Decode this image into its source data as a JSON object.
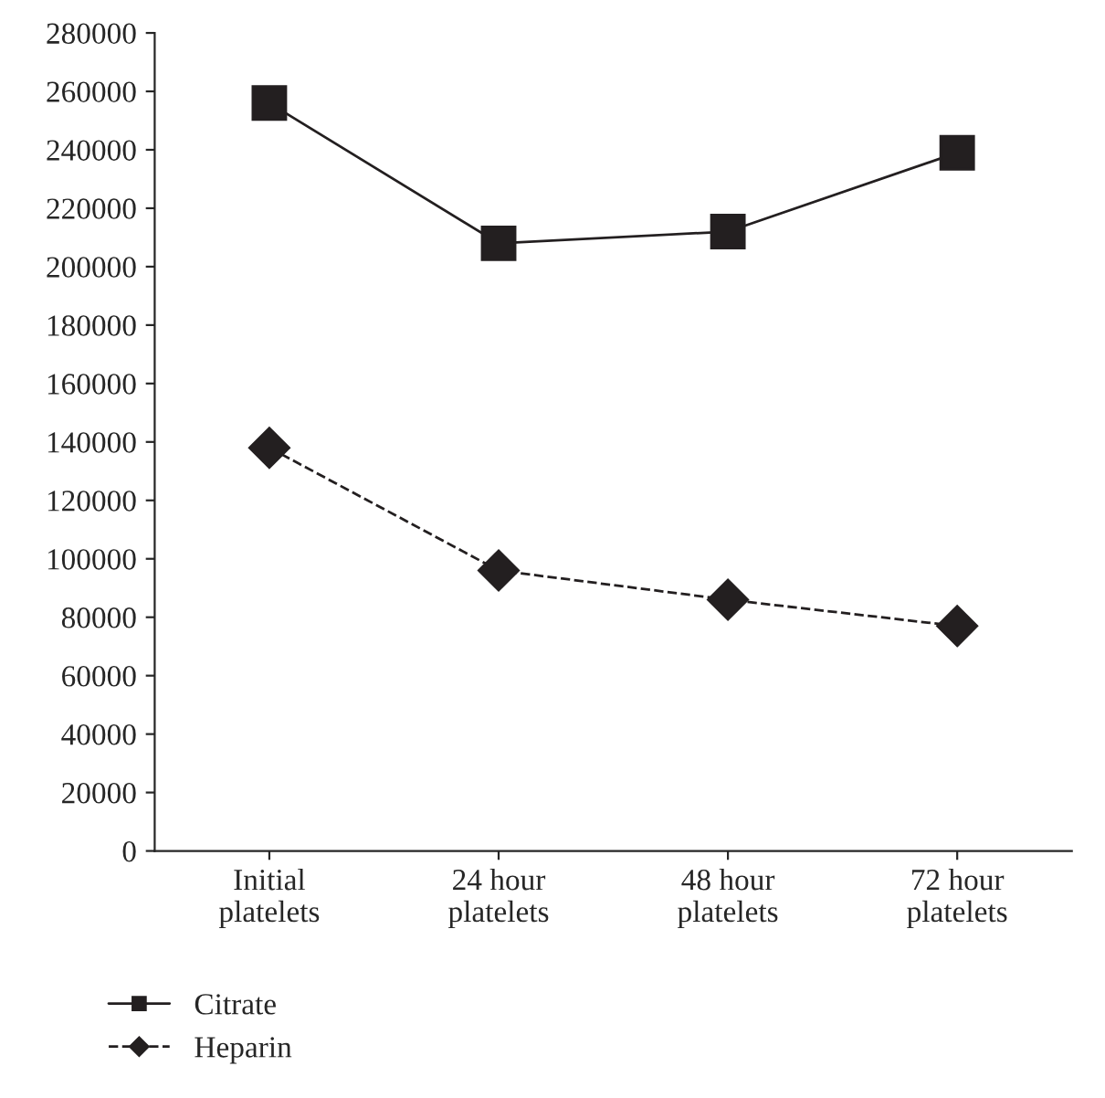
{
  "chart_data": {
    "type": "line",
    "categories": [
      "Initial\nplatelets",
      "24 hour\nplatelets",
      "48 hour\nplatelets",
      "72 hour\nplatelets"
    ],
    "series": [
      {
        "name": "Citrate",
        "color": "#231f20",
        "values": [
          256000,
          208000,
          212000,
          239000
        ],
        "marker": "square",
        "line_style": "solid"
      },
      {
        "name": "Heparin",
        "color": "#231f20",
        "values": [
          138000,
          96000,
          86000,
          77000
        ],
        "marker": "diamond",
        "line_style": "dashed"
      }
    ],
    "ylim": [
      0,
      280000
    ],
    "yticks": [
      0,
      20000,
      40000,
      60000,
      80000,
      100000,
      120000,
      140000,
      160000,
      180000,
      200000,
      220000,
      240000,
      260000,
      280000
    ],
    "grid": false,
    "legend": "bottom left"
  }
}
